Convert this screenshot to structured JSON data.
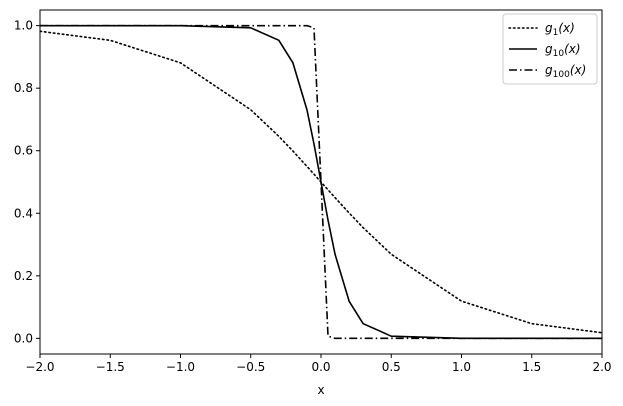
{
  "chart_data": {
    "type": "line",
    "title": "",
    "xlabel": "x",
    "ylabel": "",
    "xlim": [
      -2.0,
      2.0
    ],
    "ylim": [
      -0.05,
      1.05
    ],
    "x_ticks": [
      -2.0,
      -1.5,
      -1.0,
      -0.5,
      0.0,
      0.5,
      1.0,
      1.5,
      2.0
    ],
    "x_tick_labels": [
      "−2.0",
      "−1.5",
      "−1.0",
      "−0.5",
      "0.0",
      "0.5",
      "1.0",
      "1.5",
      "2.0"
    ],
    "y_ticks": [
      0.0,
      0.2,
      0.4,
      0.6,
      0.8,
      1.0
    ],
    "y_tick_labels": [
      "0.0",
      "0.2",
      "0.4",
      "0.6",
      "0.8",
      "1.0"
    ],
    "grid": false,
    "legend_position": "top-right",
    "x": [
      -2.0,
      -1.5,
      -1.0,
      -0.5,
      -0.3,
      -0.2,
      -0.1,
      -0.05,
      0.0,
      0.05,
      0.1,
      0.2,
      0.3,
      0.5,
      1.0,
      1.5,
      2.0
    ],
    "series": [
      {
        "name": "g",
        "subscript": "1",
        "suffix": "(x)",
        "style": "dotted",
        "values": [
          0.982,
          0.953,
          0.881,
          0.731,
          0.646,
          0.599,
          0.55,
          0.525,
          0.5,
          0.475,
          0.45,
          0.401,
          0.354,
          0.269,
          0.119,
          0.047,
          0.018
        ]
      },
      {
        "name": "g",
        "subscript": "10",
        "suffix": "(x)",
        "style": "solid",
        "values": [
          1.0,
          1.0,
          1.0,
          0.993,
          0.953,
          0.881,
          0.731,
          0.622,
          0.5,
          0.378,
          0.269,
          0.119,
          0.047,
          0.007,
          0.0,
          0.0,
          0.0
        ]
      },
      {
        "name": "g",
        "subscript": "100",
        "suffix": "(x)",
        "style": "dashdot",
        "values": [
          1.0,
          1.0,
          1.0,
          1.0,
          1.0,
          1.0,
          1.0,
          0.993,
          0.5,
          0.007,
          0.0,
          0.0,
          0.0,
          0.0,
          0.0,
          0.0,
          0.0
        ]
      }
    ],
    "line_color": "#000000"
  }
}
